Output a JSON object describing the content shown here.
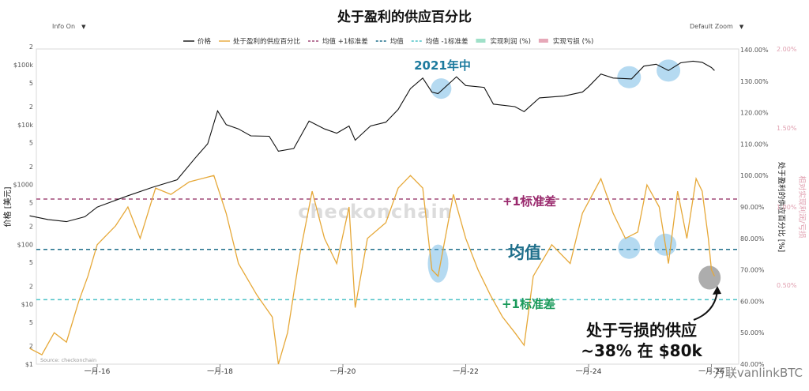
{
  "controls": {
    "info_label": "Info On",
    "zoom_label": "Default Zoom"
  },
  "colors": {
    "price": "#111111",
    "supply": "#e6a838",
    "plus_sd": "#a04a78",
    "mean": "#1f6f8b",
    "minus_sd": "#4fc3c7",
    "realized_profit": "#9fe0c8",
    "realized_loss": "#e6a8b8",
    "highlight": "#5aaee0",
    "annotation_teal": "#1c7a9e",
    "annotation_magenta": "#9a2a6e",
    "annotation_green": "#1a9a5a"
  },
  "chart_data": {
    "type": "line",
    "title": "处于盈利的供应百分比",
    "left_axis": {
      "label": "价格 [美元]",
      "scale": "log",
      "ticks": [
        "$1",
        "2",
        "5",
        "$10",
        "2",
        "5",
        "$100",
        "2",
        "5",
        "$1000",
        "2",
        "5",
        "$10k",
        "2",
        "5",
        "$100k",
        "2"
      ]
    },
    "right_axis": {
      "label": "处于盈利的供应百分比 [%]",
      "ticks": [
        "40.00%",
        "50.00%",
        "60.00%",
        "70.00%",
        "80.00%",
        "90.00%",
        "100.00%",
        "110.00%",
        "120.00%",
        "130.00%",
        "140.00%"
      ]
    },
    "right_axis_2": {
      "label": "相对实现利润/亏损",
      "ticks": [
        "0.50%",
        "1.00%",
        "1.50%",
        "2.00%"
      ]
    },
    "x_ticks": [
      "一月-16",
      "一月-18",
      "一月-20",
      "一月-22",
      "一月-24",
      "一月-26"
    ],
    "legend": [
      {
        "label": "价格",
        "style": "line",
        "color": "#111111"
      },
      {
        "label": "处于盈利的供应百分比",
        "style": "line",
        "color": "#e6a838"
      },
      {
        "label": "均值 +1标准差",
        "style": "dash",
        "color": "#a04a78"
      },
      {
        "label": "均值",
        "style": "dash",
        "color": "#1f6f8b"
      },
      {
        "label": "均值 -1标准差",
        "style": "dash",
        "color": "#4fc3c7"
      },
      {
        "label": "实现利润 (%)",
        "style": "band",
        "color": "#9fe0c8"
      },
      {
        "label": "实现亏损 (%)",
        "style": "band",
        "color": "#e6a8b8"
      }
    ],
    "reference_lines": {
      "plus_1sd_pct": 92.5,
      "mean_pct": 76.5,
      "minus_1sd_pct": 60.5
    },
    "price_series": {
      "name": "价格",
      "points": [
        [
          2014.9,
          300
        ],
        [
          2015.2,
          260
        ],
        [
          2015.5,
          240
        ],
        [
          2015.8,
          290
        ],
        [
          2016.0,
          420
        ],
        [
          2016.5,
          650
        ],
        [
          2016.9,
          900
        ],
        [
          2017.3,
          1200
        ],
        [
          2017.6,
          2800
        ],
        [
          2017.8,
          4800
        ],
        [
          2017.96,
          17000
        ],
        [
          2018.1,
          10000
        ],
        [
          2018.3,
          8500
        ],
        [
          2018.5,
          6500
        ],
        [
          2018.8,
          6400
        ],
        [
          2018.95,
          3600
        ],
        [
          2019.2,
          4000
        ],
        [
          2019.45,
          11500
        ],
        [
          2019.7,
          8500
        ],
        [
          2019.9,
          7200
        ],
        [
          2020.1,
          9500
        ],
        [
          2020.2,
          5500
        ],
        [
          2020.45,
          9500
        ],
        [
          2020.7,
          11000
        ],
        [
          2020.9,
          18000
        ],
        [
          2021.1,
          40000
        ],
        [
          2021.3,
          60000
        ],
        [
          2021.45,
          35000
        ],
        [
          2021.55,
          33000
        ],
        [
          2021.85,
          63000
        ],
        [
          2022.0,
          45000
        ],
        [
          2022.3,
          42000
        ],
        [
          2022.45,
          22000
        ],
        [
          2022.8,
          20000
        ],
        [
          2022.95,
          16500
        ],
        [
          2023.2,
          28000
        ],
        [
          2023.6,
          30000
        ],
        [
          2023.9,
          35000
        ],
        [
          2024.0,
          43000
        ],
        [
          2024.2,
          70000
        ],
        [
          2024.4,
          60000
        ],
        [
          2024.7,
          58000
        ],
        [
          2024.9,
          95000
        ],
        [
          2025.1,
          102000
        ],
        [
          2025.3,
          80000
        ],
        [
          2025.5,
          108000
        ],
        [
          2025.7,
          115000
        ],
        [
          2025.85,
          110000
        ],
        [
          2026.0,
          90000
        ],
        [
          2026.05,
          80000
        ]
      ]
    },
    "supply_in_profit_series": {
      "name": "处于盈利的供应百分比",
      "points": [
        [
          2014.9,
          45
        ],
        [
          2015.1,
          43
        ],
        [
          2015.3,
          50
        ],
        [
          2015.5,
          47
        ],
        [
          2015.7,
          60
        ],
        [
          2015.85,
          68
        ],
        [
          2016.0,
          78
        ],
        [
          2016.3,
          84
        ],
        [
          2016.5,
          90
        ],
        [
          2016.7,
          80
        ],
        [
          2016.95,
          96
        ],
        [
          2017.2,
          94
        ],
        [
          2017.5,
          98
        ],
        [
          2017.9,
          100
        ],
        [
          2018.1,
          88
        ],
        [
          2018.3,
          72
        ],
        [
          2018.6,
          62
        ],
        [
          2018.85,
          55
        ],
        [
          2018.95,
          40
        ],
        [
          2019.1,
          50
        ],
        [
          2019.3,
          75
        ],
        [
          2019.5,
          95
        ],
        [
          2019.7,
          80
        ],
        [
          2019.9,
          72
        ],
        [
          2020.1,
          90
        ],
        [
          2020.2,
          58
        ],
        [
          2020.4,
          80
        ],
        [
          2020.7,
          85
        ],
        [
          2020.9,
          96
        ],
        [
          2021.1,
          100
        ],
        [
          2021.3,
          96
        ],
        [
          2021.45,
          70
        ],
        [
          2021.55,
          68
        ],
        [
          2021.8,
          94
        ],
        [
          2022.0,
          80
        ],
        [
          2022.2,
          70
        ],
        [
          2022.4,
          62
        ],
        [
          2022.6,
          55
        ],
        [
          2022.8,
          50
        ],
        [
          2022.95,
          46
        ],
        [
          2023.1,
          68
        ],
        [
          2023.4,
          78
        ],
        [
          2023.7,
          72
        ],
        [
          2023.9,
          88
        ],
        [
          2024.2,
          99
        ],
        [
          2024.4,
          88
        ],
        [
          2024.6,
          80
        ],
        [
          2024.8,
          82
        ],
        [
          2024.95,
          97
        ],
        [
          2025.15,
          90
        ],
        [
          2025.3,
          72
        ],
        [
          2025.45,
          95
        ],
        [
          2025.6,
          80
        ],
        [
          2025.75,
          99
        ],
        [
          2025.85,
          95
        ],
        [
          2025.95,
          80
        ],
        [
          2026.0,
          70
        ],
        [
          2026.05,
          68
        ]
      ]
    },
    "annotations": [
      {
        "text": "2021年中",
        "color": "#1c7a9e"
      },
      {
        "text": "+1标准差",
        "color": "#9a2a6e"
      },
      {
        "text": "均值",
        "color": "#1f6f8b"
      },
      {
        "text": "+1标准差",
        "color": "#1a9a5a"
      },
      {
        "text": "处于亏损的供应",
        "color": "#111111"
      },
      {
        "text": "~38% 在 $80k",
        "color": "#111111"
      }
    ],
    "watermark": "checkonchain",
    "source": "Source: checkonchain",
    "credit": "万联vanlinkBTC"
  }
}
